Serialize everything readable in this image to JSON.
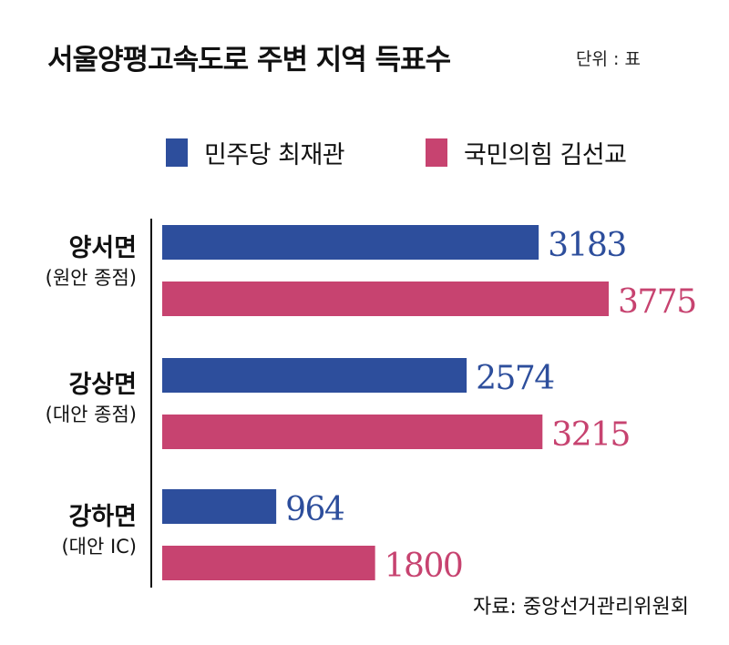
{
  "header": {
    "title": "서울양평고속도로 주변 지역 득표수",
    "unit": "단위 : 표"
  },
  "legend": [
    {
      "label": "민주당 최재관",
      "color": "#2d4e9c"
    },
    {
      "label": "국민의힘 김선교",
      "color": "#c74370"
    }
  ],
  "categories": [
    {
      "name": "양서면",
      "sub": "(원안 종점)"
    },
    {
      "name": "강상면",
      "sub": "(대안 종점)"
    },
    {
      "name": "강하면",
      "sub": "(대안 IC)"
    }
  ],
  "source": "자료: 중앙선거관리위원회",
  "chart_data": {
    "type": "bar",
    "orientation": "horizontal",
    "title": "서울양평고속도로 주변 지역 득표수",
    "unit": "단위 : 표",
    "categories": [
      "양서면",
      "강상면",
      "강하면"
    ],
    "series": [
      {
        "name": "민주당 최재관",
        "color": "#2d4e9c",
        "values": [
          3183,
          2574,
          964
        ]
      },
      {
        "name": "국민의힘 김선교",
        "color": "#c74370",
        "values": [
          3775,
          3215,
          1800
        ]
      }
    ],
    "xlim": [
      0,
      3775
    ],
    "grid": false,
    "legend_position": "top"
  }
}
